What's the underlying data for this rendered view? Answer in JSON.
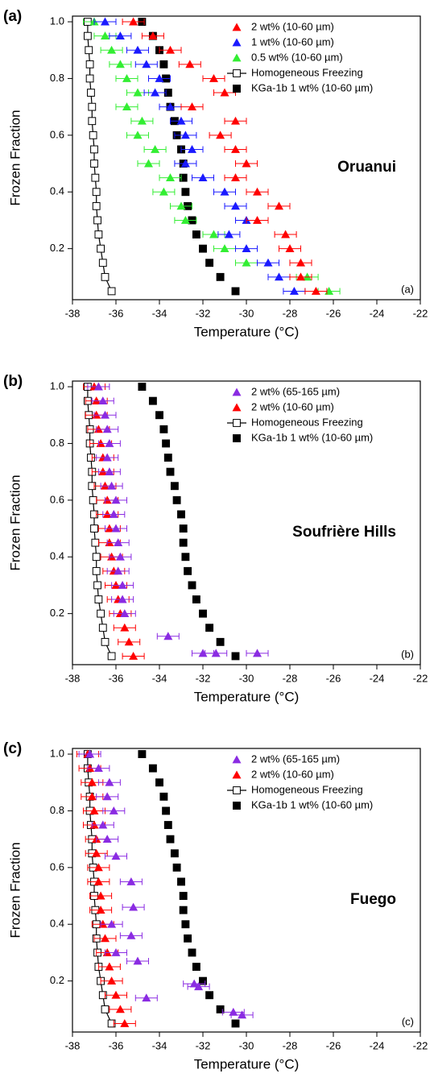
{
  "chart_data": [
    {
      "type": "scatter",
      "label": "(a)",
      "title": "Oruanui",
      "corner_note": "(a)",
      "xlabel": "Temperature (°C)",
      "ylabel": "Frozen Fraction",
      "xlim": [
        -38,
        -22
      ],
      "ylim": [
        0.02,
        1.02
      ],
      "xticks": [
        -38,
        -36,
        -34,
        -32,
        -30,
        -28,
        -26,
        -24,
        -22
      ],
      "yticks": [
        0.2,
        0.4,
        0.6,
        0.8,
        {
          "value": 1,
          "label": "1.0"
        }
      ],
      "legend": "upper right",
      "series": [
        {
          "name": "2 wt% (10-60 µm)",
          "color": "#ff0000",
          "marker": "triangle",
          "xerr": 0.5,
          "x": [
            -35.2,
            -34.3,
            -33.5,
            -32.6,
            -31.5,
            -31.0,
            -32.5,
            -30.5,
            -31.2,
            -30.5,
            -30.0,
            -30.5,
            -29.5,
            -28.5,
            -29.5,
            -28.2,
            -28.0,
            -27.5,
            -27.5,
            -26.8
          ],
          "values": [
            1,
            0.95,
            0.9,
            0.85,
            0.8,
            0.75,
            0.7,
            0.65,
            0.6,
            0.55,
            0.5,
            0.45,
            0.4,
            0.35,
            0.3,
            0.25,
            0.2,
            0.15,
            0.1,
            0.05
          ]
        },
        {
          "name": "1 wt% (10-60 µm)",
          "color": "#1a1aff",
          "marker": "triangle",
          "xerr": 0.5,
          "x": [
            -36.5,
            -35.8,
            -35.0,
            -34.6,
            -34.0,
            -34.2,
            -33.5,
            -33.0,
            -32.8,
            -32.5,
            -32.8,
            -32.0,
            -31.0,
            -30.5,
            -30.0,
            -30.8,
            -30.0,
            -29.0,
            -28.5,
            -27.8
          ],
          "values": [
            1,
            0.95,
            0.9,
            0.85,
            0.8,
            0.75,
            0.7,
            0.65,
            0.6,
            0.55,
            0.5,
            0.45,
            0.4,
            0.35,
            0.3,
            0.25,
            0.2,
            0.15,
            0.1,
            0.05
          ]
        },
        {
          "name": "0.5 wt% (10-60 µm)",
          "color": "#33ee33",
          "marker": "triangle",
          "xerr": 0.5,
          "x": [
            -37.0,
            -36.5,
            -36.2,
            -35.8,
            -35.5,
            -35.0,
            -35.5,
            -34.8,
            -35.0,
            -34.2,
            -34.5,
            -33.5,
            -33.8,
            -33.0,
            -32.8,
            -31.5,
            -31.0,
            -30.0,
            -27.2,
            -26.2
          ],
          "values": [
            1,
            0.95,
            0.9,
            0.85,
            0.8,
            0.75,
            0.7,
            0.65,
            0.6,
            0.55,
            0.5,
            0.45,
            0.4,
            0.35,
            0.3,
            0.25,
            0.2,
            0.15,
            0.1,
            0.05
          ]
        },
        {
          "name": "Homogeneous Freezing",
          "color": "#000000",
          "marker": "open-square",
          "line": true,
          "x": [
            -37.3,
            -37.3,
            -37.25,
            -37.2,
            -37.2,
            -37.15,
            -37.1,
            -37.1,
            -37.05,
            -37.0,
            -37.0,
            -36.95,
            -36.9,
            -36.9,
            -36.85,
            -36.8,
            -36.7,
            -36.6,
            -36.5,
            -36.2
          ],
          "values": [
            1,
            0.95,
            0.9,
            0.85,
            0.8,
            0.75,
            0.7,
            0.65,
            0.6,
            0.55,
            0.5,
            0.45,
            0.4,
            0.35,
            0.3,
            0.25,
            0.2,
            0.15,
            0.1,
            0.05
          ]
        },
        {
          "name": "KGa-1b 1 wt% (10-60 µm)",
          "color": "#000000",
          "marker": "square",
          "x": [
            -34.8,
            -34.3,
            -34.0,
            -33.8,
            -33.7,
            -33.6,
            -33.5,
            -33.3,
            -33.2,
            -33.0,
            -32.9,
            -32.9,
            -32.8,
            -32.7,
            -32.5,
            -32.3,
            -32.0,
            -31.7,
            -31.2,
            -30.5
          ],
          "values": [
            1,
            0.95,
            0.9,
            0.85,
            0.8,
            0.75,
            0.7,
            0.65,
            0.6,
            0.55,
            0.5,
            0.45,
            0.4,
            0.35,
            0.3,
            0.25,
            0.2,
            0.15,
            0.1,
            0.05
          ]
        }
      ]
    },
    {
      "type": "scatter",
      "label": "(b)",
      "title": "Soufrière Hills",
      "corner_note": "(b)",
      "xlabel": "Temperature (°C)",
      "ylabel": "Frozen Fraction",
      "xlim": [
        -38,
        -22
      ],
      "ylim": [
        0.02,
        1.02
      ],
      "xticks": [
        -38,
        -36,
        -34,
        -32,
        -30,
        -28,
        -26,
        -24,
        -22
      ],
      "yticks": [
        0.2,
        0.4,
        0.6,
        0.8,
        {
          "value": 1,
          "label": "1.0"
        }
      ],
      "legend": "upper right",
      "series": [
        {
          "name": "2 wt% (65-165 µm)",
          "color": "#8a2be2",
          "marker": "triangle",
          "xerr": 0.5,
          "x": [
            -36.8,
            -36.6,
            -36.5,
            -36.4,
            -36.3,
            -36.4,
            -36.3,
            -36.2,
            -36.0,
            -36.1,
            -36.0,
            -35.9,
            -35.8,
            -35.9,
            -35.7,
            -35.7,
            -35.6,
            -33.6,
            -32.0,
            -31.4,
            -29.5
          ],
          "values": [
            1,
            0.95,
            0.9,
            0.85,
            0.8,
            0.75,
            0.7,
            0.65,
            0.6,
            0.55,
            0.5,
            0.45,
            0.4,
            0.35,
            0.3,
            0.25,
            0.2,
            0.12,
            0.06,
            0.06,
            0.06
          ]
        },
        {
          "name": "2 wt% (10-60 µm)",
          "color": "#ff0000",
          "marker": "triangle",
          "xerr": 0.5,
          "x": [
            -37.0,
            -36.9,
            -36.9,
            -36.8,
            -36.7,
            -36.6,
            -36.6,
            -36.5,
            -36.4,
            -36.4,
            -36.3,
            -36.3,
            -36.2,
            -36.1,
            -36.0,
            -35.9,
            -35.8,
            -35.6,
            -35.4,
            -35.2
          ],
          "values": [
            1,
            0.95,
            0.9,
            0.85,
            0.8,
            0.75,
            0.7,
            0.65,
            0.6,
            0.55,
            0.5,
            0.45,
            0.4,
            0.35,
            0.3,
            0.25,
            0.2,
            0.15,
            0.1,
            0.05
          ]
        },
        {
          "name": "Homogeneous Freezing",
          "color": "#000000",
          "marker": "open-square",
          "line": true,
          "x": [
            -37.3,
            -37.3,
            -37.25,
            -37.2,
            -37.2,
            -37.15,
            -37.1,
            -37.1,
            -37.05,
            -37.0,
            -37.0,
            -36.95,
            -36.9,
            -36.9,
            -36.85,
            -36.8,
            -36.7,
            -36.6,
            -36.5,
            -36.2
          ],
          "values": [
            1,
            0.95,
            0.9,
            0.85,
            0.8,
            0.75,
            0.7,
            0.65,
            0.6,
            0.55,
            0.5,
            0.45,
            0.4,
            0.35,
            0.3,
            0.25,
            0.2,
            0.15,
            0.1,
            0.05
          ]
        },
        {
          "name": "KGa-1b 1 wt% (10-60 µm)",
          "color": "#000000",
          "marker": "square",
          "x": [
            -34.8,
            -34.3,
            -34.0,
            -33.8,
            -33.7,
            -33.6,
            -33.5,
            -33.3,
            -33.2,
            -33.0,
            -32.9,
            -32.9,
            -32.8,
            -32.7,
            -32.5,
            -32.3,
            -32.0,
            -31.7,
            -31.2,
            -30.5
          ],
          "values": [
            1,
            0.95,
            0.9,
            0.85,
            0.8,
            0.75,
            0.7,
            0.65,
            0.6,
            0.55,
            0.5,
            0.45,
            0.4,
            0.35,
            0.3,
            0.25,
            0.2,
            0.15,
            0.1,
            0.05
          ]
        }
      ]
    },
    {
      "type": "scatter",
      "label": "(c)",
      "title": "Fuego",
      "corner_note": "(c)",
      "xlabel": "Temperature (°C)",
      "ylabel": "Frozen Fraction",
      "xlim": [
        -38,
        -22
      ],
      "ylim": [
        0.02,
        1.02
      ],
      "xticks": [
        -38,
        -36,
        -34,
        -32,
        -30,
        -28,
        -26,
        -24,
        -22
      ],
      "yticks": [
        0.2,
        0.4,
        0.6,
        0.8,
        {
          "value": 1,
          "label": "1.0"
        }
      ],
      "legend": "upper right",
      "series": [
        {
          "name": "2 wt% (65-165 µm)",
          "color": "#8a2be2",
          "marker": "triangle",
          "xerr": 0.5,
          "x": [
            -37.2,
            -36.8,
            -36.3,
            -36.4,
            -36.1,
            -36.6,
            -36.4,
            -36.0,
            -35.3,
            -35.2,
            -36.2,
            -35.3,
            -36.0,
            -35.0,
            -32.4,
            -32.2,
            -34.6,
            -30.6,
            -30.2
          ],
          "values": [
            1,
            0.95,
            0.9,
            0.85,
            0.8,
            0.75,
            0.7,
            0.64,
            0.55,
            0.46,
            0.4,
            0.36,
            0.3,
            0.27,
            0.19,
            0.18,
            0.14,
            0.09,
            0.08
          ]
        },
        {
          "name": "2 wt% (10-60 µm)",
          "color": "#ff0000",
          "marker": "triangle",
          "xerr": 0.5,
          "x": [
            -37.3,
            -37.2,
            -37.1,
            -37.1,
            -37.0,
            -37.0,
            -36.9,
            -36.9,
            -36.8,
            -36.8,
            -36.7,
            -36.7,
            -36.6,
            -36.5,
            -36.4,
            -36.3,
            -36.2,
            -36.0,
            -35.8,
            -35.6
          ],
          "values": [
            1,
            0.95,
            0.9,
            0.85,
            0.8,
            0.75,
            0.7,
            0.65,
            0.6,
            0.55,
            0.5,
            0.45,
            0.4,
            0.35,
            0.3,
            0.25,
            0.2,
            0.15,
            0.1,
            0.05
          ]
        },
        {
          "name": "Homogeneous Freezing",
          "color": "#000000",
          "marker": "open-square",
          "line": true,
          "x": [
            -37.3,
            -37.3,
            -37.25,
            -37.2,
            -37.2,
            -37.15,
            -37.1,
            -37.1,
            -37.05,
            -37.0,
            -37.0,
            -36.95,
            -36.9,
            -36.9,
            -36.85,
            -36.8,
            -36.7,
            -36.6,
            -36.5,
            -36.2
          ],
          "values": [
            1,
            0.95,
            0.9,
            0.85,
            0.8,
            0.75,
            0.7,
            0.65,
            0.6,
            0.55,
            0.5,
            0.45,
            0.4,
            0.35,
            0.3,
            0.25,
            0.2,
            0.15,
            0.1,
            0.05
          ]
        },
        {
          "name": "KGa-1b 1 wt% (10-60 µm)",
          "color": "#000000",
          "marker": "square",
          "x": [
            -34.8,
            -34.3,
            -34.0,
            -33.8,
            -33.7,
            -33.6,
            -33.5,
            -33.3,
            -33.2,
            -33.0,
            -32.9,
            -32.9,
            -32.8,
            -32.7,
            -32.5,
            -32.3,
            -32.0,
            -31.7,
            -31.2,
            -30.5
          ],
          "values": [
            1,
            0.95,
            0.9,
            0.85,
            0.8,
            0.75,
            0.7,
            0.65,
            0.6,
            0.55,
            0.5,
            0.45,
            0.4,
            0.35,
            0.3,
            0.25,
            0.2,
            0.15,
            0.1,
            0.05
          ]
        }
      ]
    }
  ]
}
